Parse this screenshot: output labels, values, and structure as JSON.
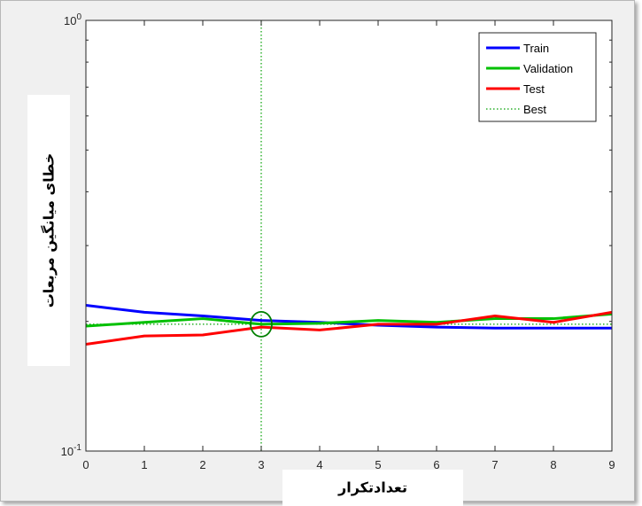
{
  "chart_data": {
    "type": "line",
    "xlabel": "تعدادتکرار",
    "ylabel": "خطای میانگین مربعات",
    "xlim": [
      0,
      9
    ],
    "ylim": [
      0.1,
      1
    ],
    "yscale": "log",
    "x_ticks": [
      "0",
      "1",
      "2",
      "3",
      "4",
      "5",
      "6",
      "7",
      "8",
      "9"
    ],
    "y_ticks": [
      {
        "value": 1,
        "base": "10",
        "exp": "0"
      },
      {
        "value": 0.1,
        "base": "10",
        "exp": "-1"
      }
    ],
    "grid": false,
    "legend_position": "top-right",
    "series": [
      {
        "name": "Train",
        "color": "#0000ff",
        "style": "solid",
        "x": [
          0,
          1,
          2,
          3,
          4,
          5,
          6,
          7,
          8,
          9
        ],
        "y": [
          0.218,
          0.21,
          0.206,
          0.201,
          0.199,
          0.196,
          0.194,
          0.193,
          0.193,
          0.193
        ]
      },
      {
        "name": "Validation",
        "color": "#00c000",
        "style": "solid",
        "x": [
          0,
          1,
          2,
          3,
          4,
          5,
          6,
          7,
          8,
          9
        ],
        "y": [
          0.195,
          0.199,
          0.203,
          0.197,
          0.198,
          0.201,
          0.199,
          0.203,
          0.203,
          0.208
        ]
      },
      {
        "name": "Test",
        "color": "#ff0000",
        "style": "solid",
        "x": [
          0,
          1,
          2,
          3,
          4,
          5,
          6,
          7,
          8,
          9
        ],
        "y": [
          0.177,
          0.185,
          0.186,
          0.194,
          0.191,
          0.197,
          0.197,
          0.206,
          0.199,
          0.21
        ]
      },
      {
        "name": "Best",
        "color": "#00a000",
        "style": "dotted",
        "x": [
          0,
          9
        ],
        "y": [
          0.197,
          0.197
        ]
      }
    ],
    "best_marker": {
      "x": 3,
      "y": 0.197,
      "color": "#008000"
    },
    "best_vline": {
      "x": 3,
      "color": "#00a000"
    }
  }
}
